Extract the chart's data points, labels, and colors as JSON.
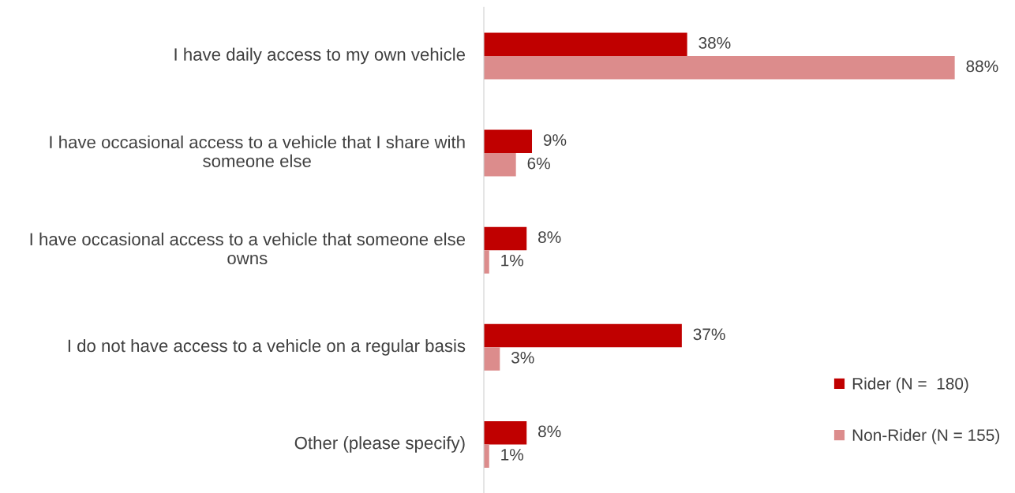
{
  "chart_data": {
    "type": "bar",
    "orientation": "horizontal",
    "categories": [
      "I have daily access to my own vehicle",
      "I have occasional access to a vehicle that I share with someone else",
      "I have occasional access to a vehicle that someone else owns",
      "I do not have access to a vehicle on a regular basis",
      "Other (please specify)"
    ],
    "series": [
      {
        "name": "Rider (N =  180)",
        "color": "#c00000",
        "values": [
          38,
          9,
          8,
          37,
          8
        ],
        "value_labels": [
          "38%",
          "9%",
          "8%",
          "37%",
          "8%"
        ]
      },
      {
        "name": "Non-Rider (N = 155)",
        "color": "#dc8c8c",
        "values": [
          88,
          6,
          1,
          3,
          1
        ],
        "value_labels": [
          "88%",
          "6%",
          "1%",
          "3%",
          "1%"
        ]
      }
    ],
    "legend": "bottom right"
  }
}
